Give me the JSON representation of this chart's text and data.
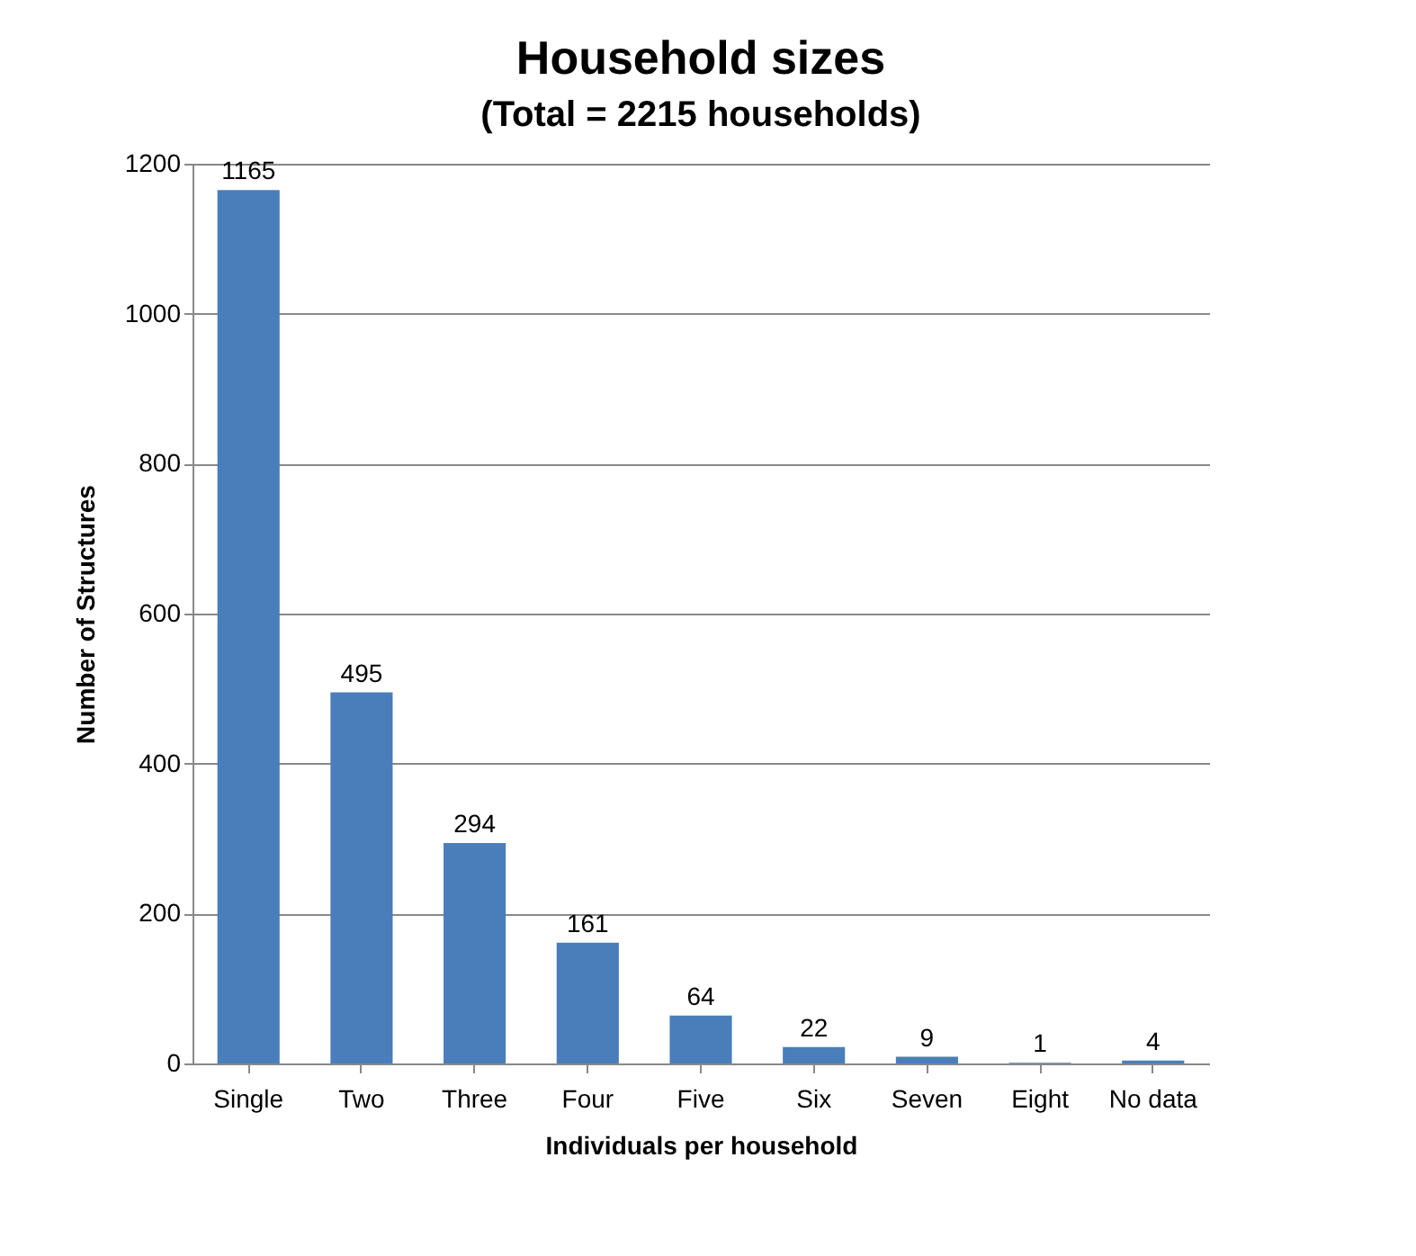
{
  "chart_data": {
    "type": "bar",
    "title": "Household sizes",
    "subtitle": "(Total = 2215 households)",
    "xlabel": "Individuals per household",
    "ylabel": "Number of Structures",
    "categories": [
      "Single",
      "Two",
      "Three",
      "Four",
      "Five",
      "Six",
      "Seven",
      "Eight",
      "No data"
    ],
    "values": [
      1165,
      495,
      294,
      161,
      64,
      22,
      9,
      1,
      4
    ],
    "color": "#4a7ebb",
    "ylim": [
      0,
      1200
    ],
    "yticks": [
      0,
      200,
      400,
      600,
      800,
      1000,
      1200
    ],
    "grid": "y",
    "data_labels": true
  }
}
